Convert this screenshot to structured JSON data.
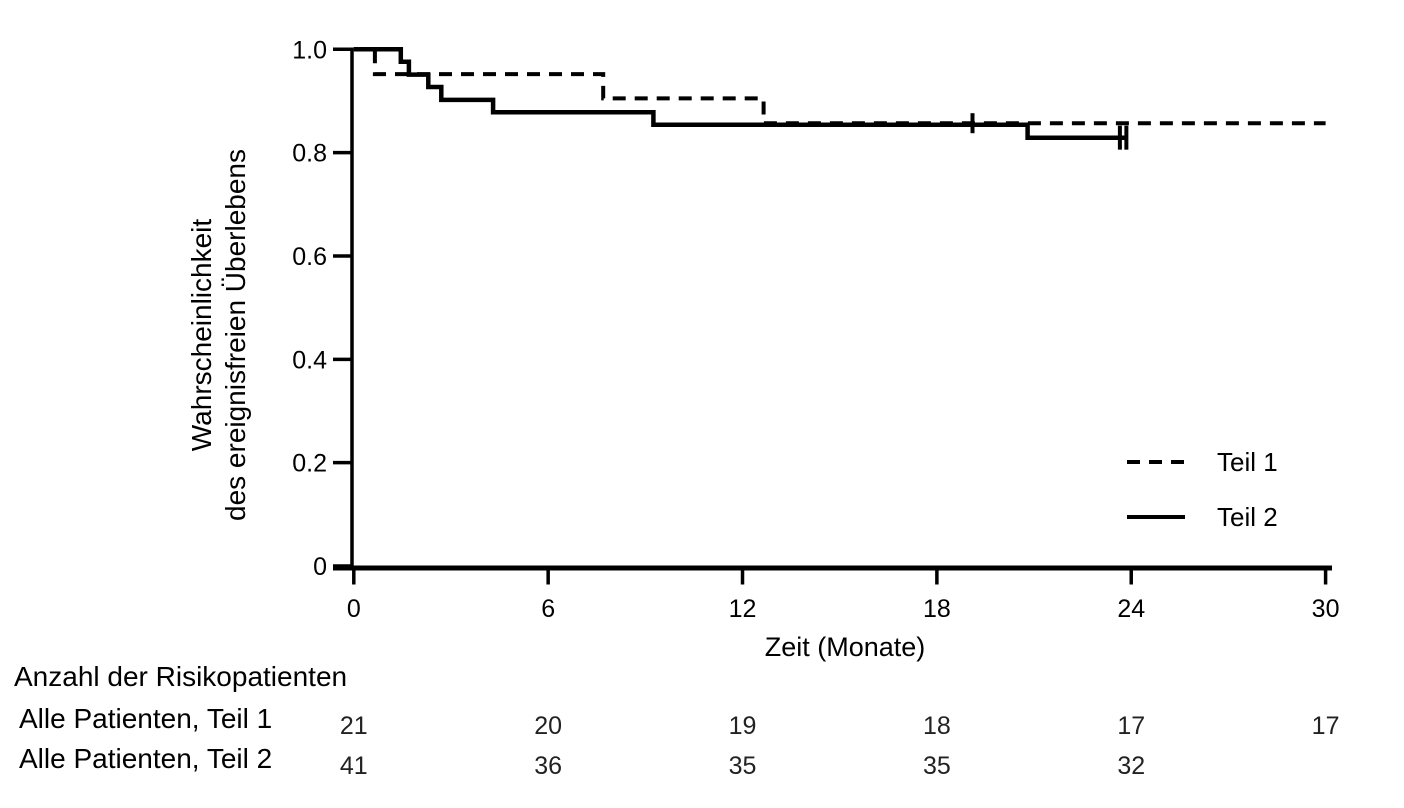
{
  "figure": {
    "background": "#ffffff",
    "ink": "#000000"
  },
  "y_axis": {
    "title_lines": [
      "Wahrscheinlichkeit",
      "des ereignisfreien Überlebens"
    ],
    "tick_labels": [
      "1.0",
      "0.8",
      "0.6",
      "0.4",
      "0.2",
      "0"
    ],
    "tick_values": [
      1.0,
      0.8,
      0.6,
      0.4,
      0.2,
      0
    ]
  },
  "x_axis": {
    "title": "Zeit (Monate)",
    "tick_labels": [
      "0",
      "6",
      "12",
      "18",
      "24",
      "30"
    ],
    "tick_values": [
      0,
      6,
      12,
      18,
      24,
      30
    ]
  },
  "legend": {
    "items": [
      {
        "label": "Teil 1",
        "line_style": "dashed"
      },
      {
        "label": "Teil 2",
        "line_style": "solid"
      }
    ]
  },
  "chart_data": {
    "type": "line",
    "subtype": "kaplan_meier_step",
    "title": "",
    "xlabel": "Zeit (Monate)",
    "ylabel": "Wahrscheinlichkeit des ereignisfreien Überlebens",
    "xlim": [
      0,
      30
    ],
    "ylim": [
      0,
      1.0
    ],
    "xticks": [
      0,
      6,
      12,
      18,
      24,
      30
    ],
    "yticks": [
      0,
      0.2,
      0.4,
      0.6,
      0.8,
      1.0
    ],
    "grid": false,
    "legend_position": "right-middle",
    "series": [
      {
        "name": "Teil 1",
        "line_style": "dashed",
        "color": "#000000",
        "step_points": [
          [
            0,
            1.0
          ],
          [
            0.65,
            0.952
          ],
          [
            7.7,
            0.905
          ],
          [
            12.65,
            0.857
          ]
        ],
        "end_x": 30,
        "censor_marks": [
          [
            19.1,
            0.857
          ]
        ]
      },
      {
        "name": "Teil 2",
        "line_style": "solid",
        "color": "#000000",
        "step_points": [
          [
            0,
            1.0
          ],
          [
            1.45,
            0.976
          ],
          [
            1.7,
            0.951
          ],
          [
            2.3,
            0.927
          ],
          [
            2.7,
            0.902
          ],
          [
            4.3,
            0.878
          ],
          [
            9.25,
            0.854
          ],
          [
            20.8,
            0.829
          ]
        ],
        "end_x": 23.9,
        "censor_marks": [
          [
            23.65,
            0.829
          ],
          [
            23.85,
            0.829
          ]
        ]
      }
    ]
  },
  "risk_table": {
    "title": "Anzahl der Risikopatienten",
    "time_points": [
      0,
      6,
      12,
      18,
      24,
      30
    ],
    "rows": [
      {
        "label": "Alle Patienten, Teil 1",
        "values": [
          "21",
          "20",
          "19",
          "18",
          "17",
          "17"
        ]
      },
      {
        "label": "Alle Patienten, Teil 2",
        "values": [
          "41",
          "36",
          "35",
          "35",
          "32",
          ""
        ]
      }
    ]
  }
}
